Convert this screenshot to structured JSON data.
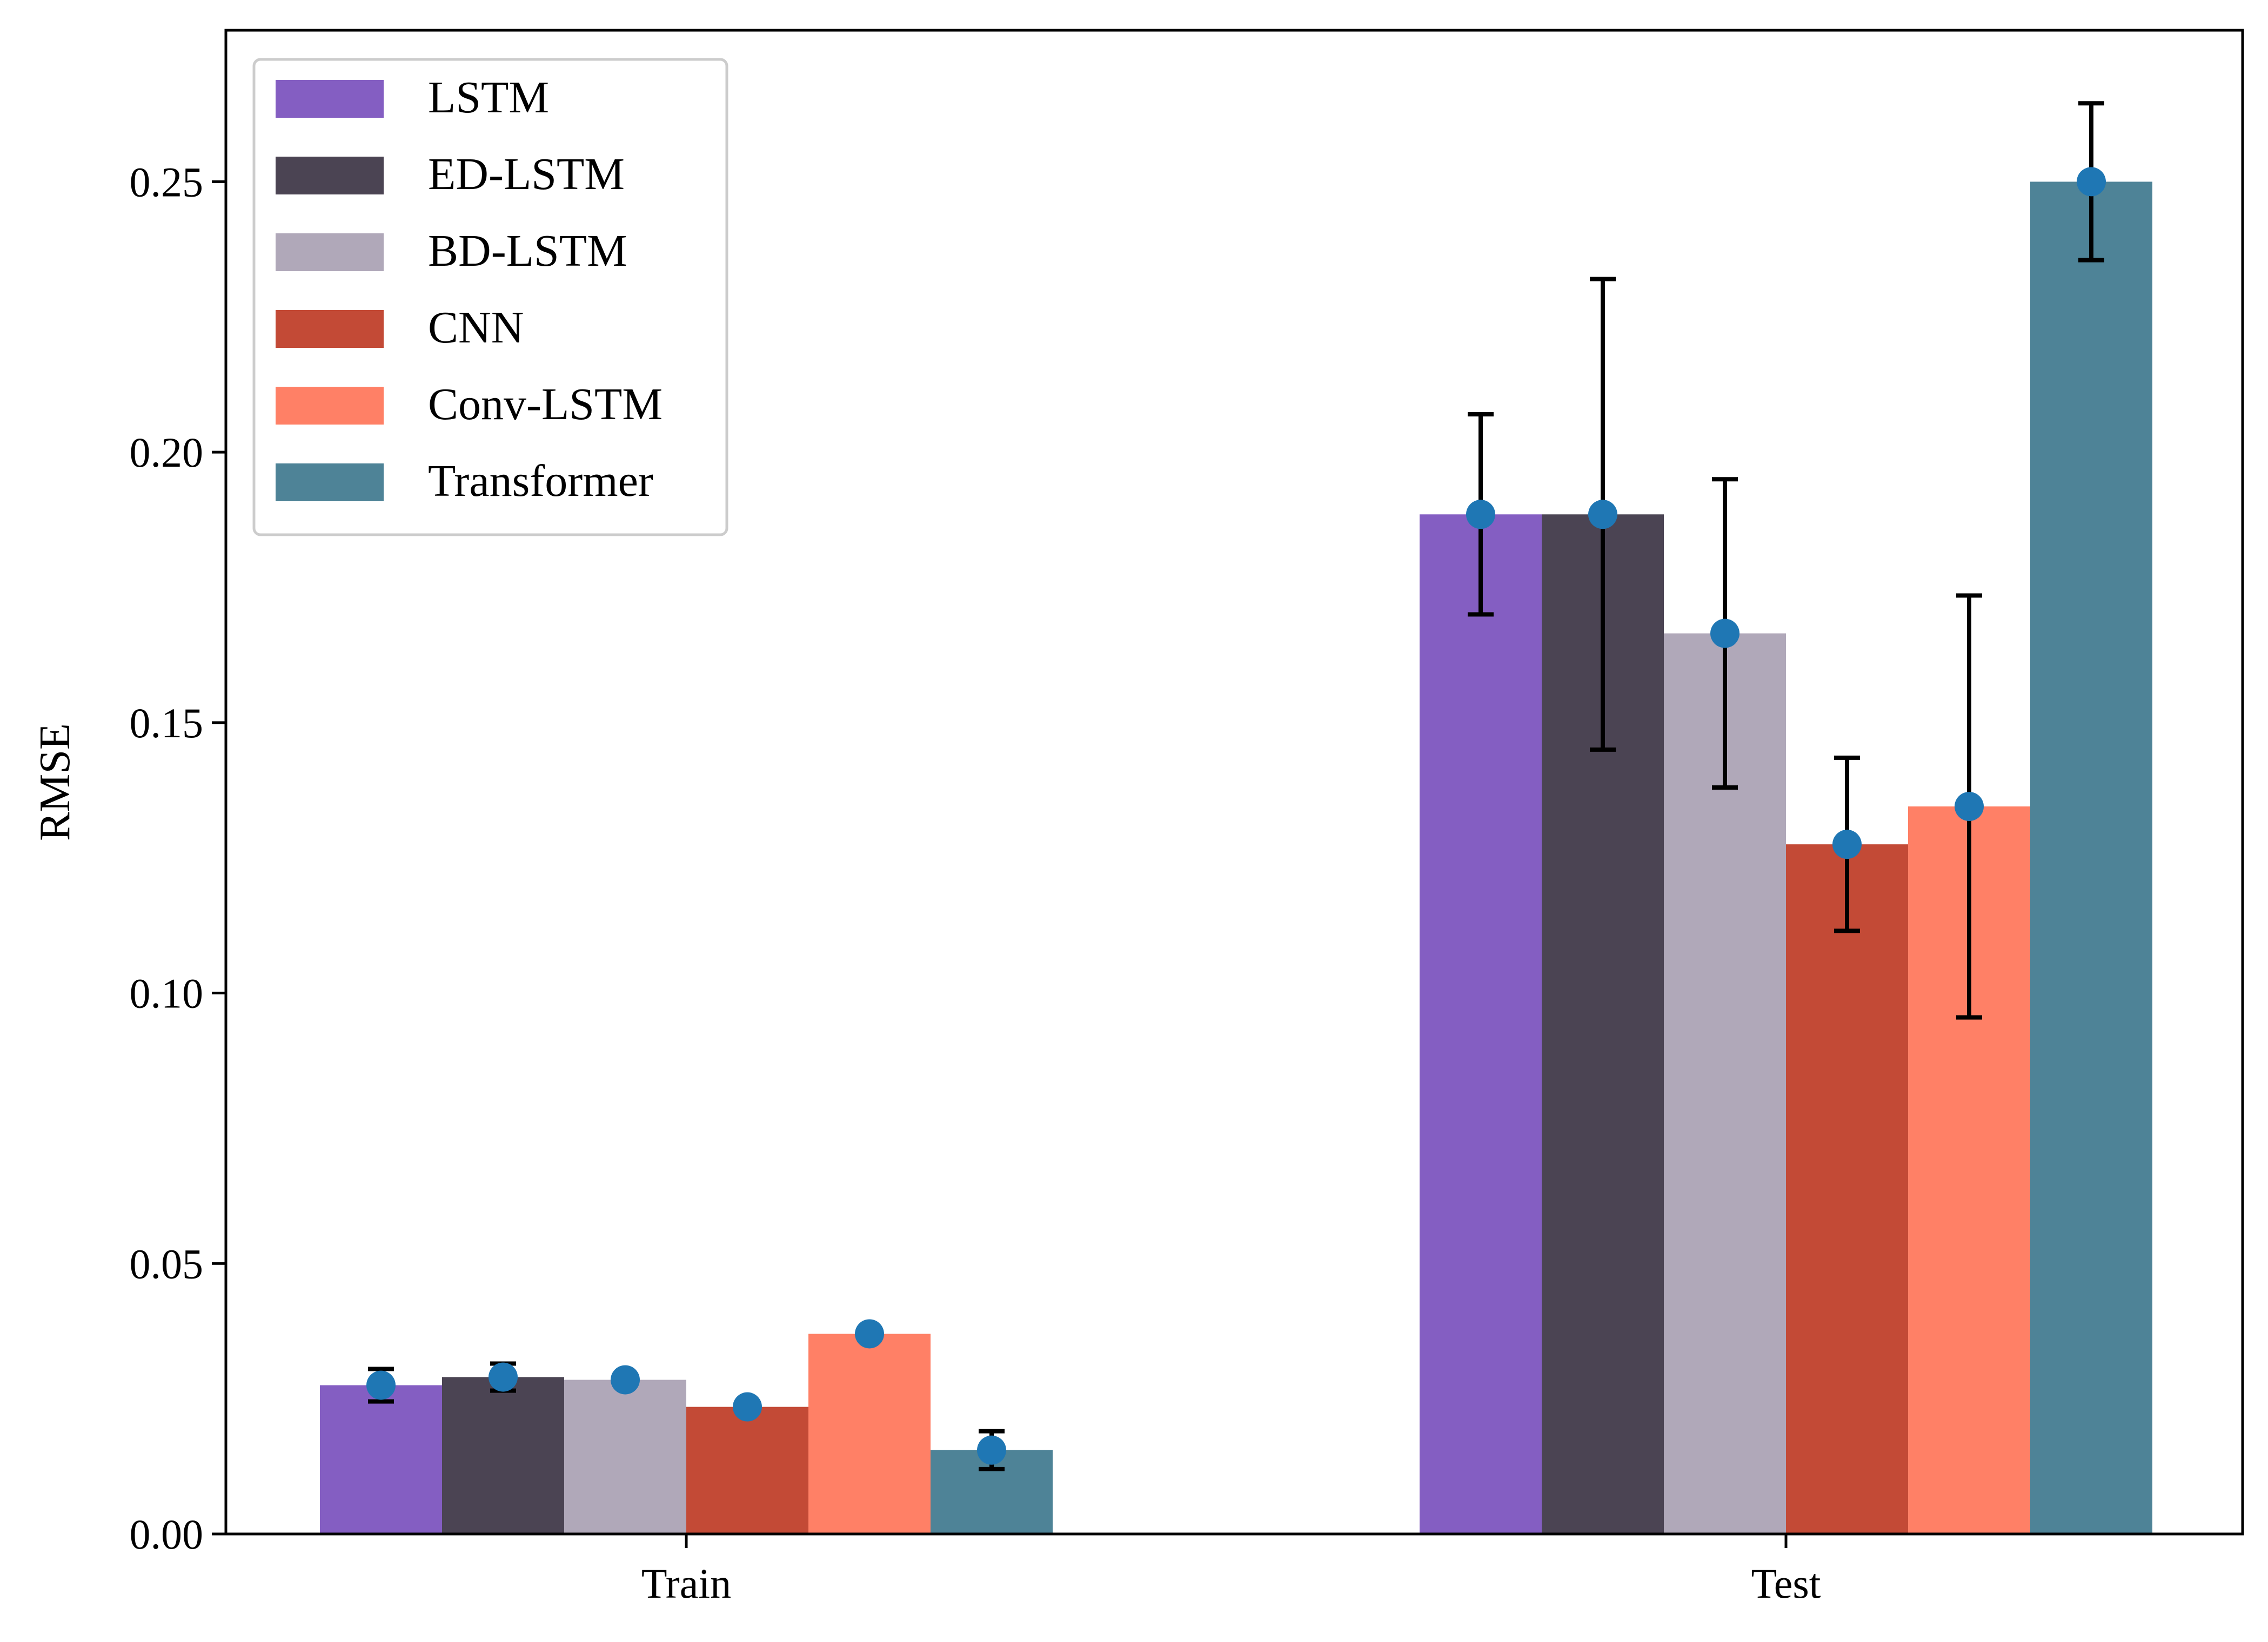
{
  "chart_data": {
    "type": "bar",
    "title": "",
    "xlabel": "",
    "ylabel": "RMSE",
    "categories": [
      "Train",
      "Test"
    ],
    "ylim": [
      0,
      0.278
    ],
    "yticks": [
      0.0,
      0.05,
      0.1,
      0.15,
      0.2,
      0.25
    ],
    "ytick_labels": [
      "0.00",
      "0.05",
      "0.10",
      "0.15",
      "0.20",
      "0.25"
    ],
    "grid": false,
    "legend_position": "upper-left",
    "marker_color": "#1f77b4",
    "errorbar_color": "#000000",
    "series": [
      {
        "name": "LSTM",
        "color": "#845EC2",
        "values": [
          0.0275,
          0.1885
        ],
        "errors": [
          0.003,
          0.0185
        ]
      },
      {
        "name": "ED-LSTM",
        "color": "#4B4453",
        "values": [
          0.029,
          0.1885
        ],
        "errors": [
          0.0025,
          0.0435
        ]
      },
      {
        "name": "BD-LSTM",
        "color": "#B0A8B9",
        "values": [
          0.0285,
          0.1665
        ],
        "errors": [
          0.0005,
          0.0285
        ]
      },
      {
        "name": "CNN",
        "color": "#C34A36",
        "values": [
          0.0235,
          0.1275
        ],
        "errors": [
          0.0005,
          0.016
        ]
      },
      {
        "name": "Conv-LSTM",
        "color": "#FF8066",
        "values": [
          0.037,
          0.1345
        ],
        "errors": [
          0.0005,
          0.039
        ]
      },
      {
        "name": "Transformer",
        "color": "#4E8397",
        "values": [
          0.0155,
          0.25
        ],
        "errors": [
          0.0035,
          0.0145
        ]
      }
    ]
  }
}
